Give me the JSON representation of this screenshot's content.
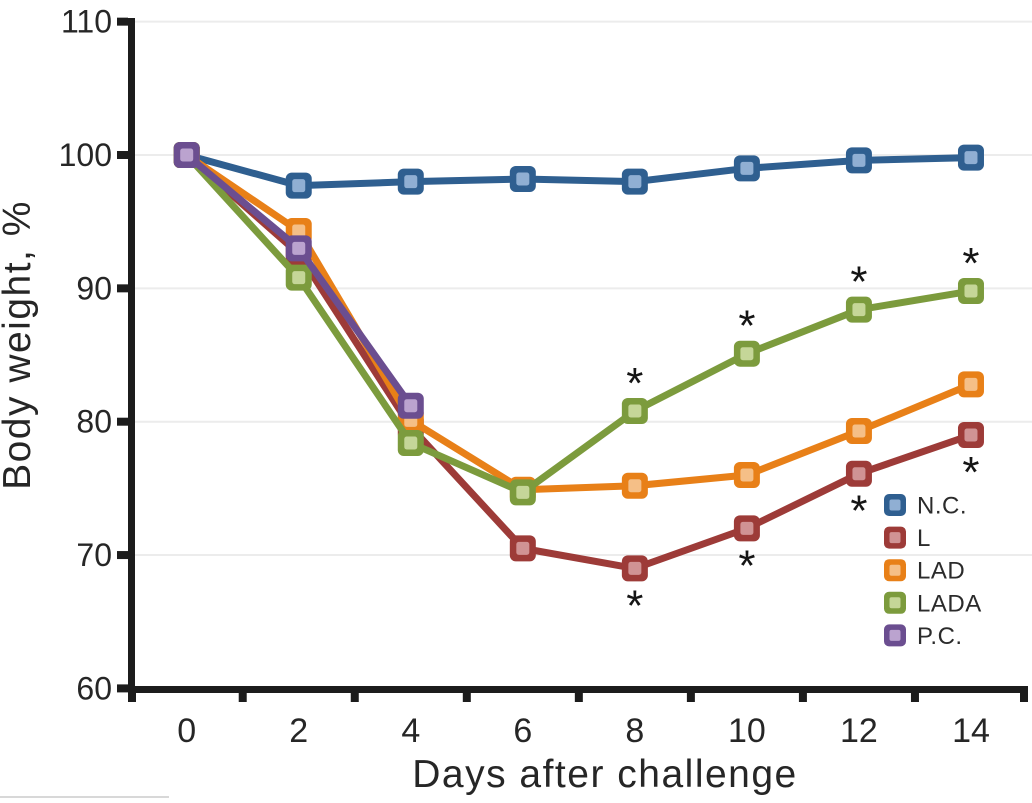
{
  "chart_data": {
    "type": "line",
    "title": "",
    "xlabel": "Days after challenge",
    "ylabel": "Body weight, %",
    "x": [
      0,
      2,
      4,
      6,
      8,
      10,
      12,
      14
    ],
    "xlim": [
      -1,
      15
    ],
    "ylim": [
      60,
      110
    ],
    "yticks": [
      60,
      70,
      80,
      90,
      100,
      110
    ],
    "xtick_labels": [
      "0",
      "2",
      "4",
      "6",
      "8",
      "10",
      "12",
      "14"
    ],
    "ytick_labels": [
      "60",
      "70",
      "80",
      "90",
      "100",
      "110"
    ],
    "grid": "horizontal",
    "gridline_color": "#ececec",
    "axis_color": "#1c1c1c",
    "marker": "rounded-square",
    "legend_position": "inside-right-middle",
    "series": [
      {
        "name": "N.C.",
        "color": "#2f5f90",
        "marker_fill": "#90afd3",
        "values": [
          100,
          97.7,
          98.0,
          98.2,
          98.0,
          99.0,
          99.6,
          99.8
        ]
      },
      {
        "name": "L",
        "color": "#9d3b38",
        "marker_fill": "#d09394",
        "values": [
          100,
          92.6,
          79.6,
          70.5,
          69.0,
          72.0,
          76.1,
          79.0
        ]
      },
      {
        "name": "LAD",
        "color": "#e88018",
        "marker_fill": "#f5bf87",
        "values": [
          100,
          94.3,
          80.1,
          74.9,
          75.2,
          76.0,
          79.3,
          82.8
        ]
      },
      {
        "name": "LADA",
        "color": "#7c9b3d",
        "marker_fill": "#c5d698",
        "values": [
          100,
          90.8,
          78.4,
          74.7,
          80.8,
          85.1,
          88.4,
          89.8
        ]
      },
      {
        "name": "P.C.",
        "color": "#6b4e90",
        "marker_fill": "#bba3cf",
        "values": [
          100,
          93.0,
          81.2,
          null,
          null,
          null,
          null,
          null
        ]
      }
    ],
    "significance": [
      {
        "series": "L",
        "symbol": "*",
        "position": "below",
        "days": [
          8,
          10,
          12,
          14
        ]
      },
      {
        "series": "LADA",
        "symbol": "*",
        "position": "above",
        "days": [
          8,
          10,
          12,
          14
        ]
      }
    ]
  }
}
